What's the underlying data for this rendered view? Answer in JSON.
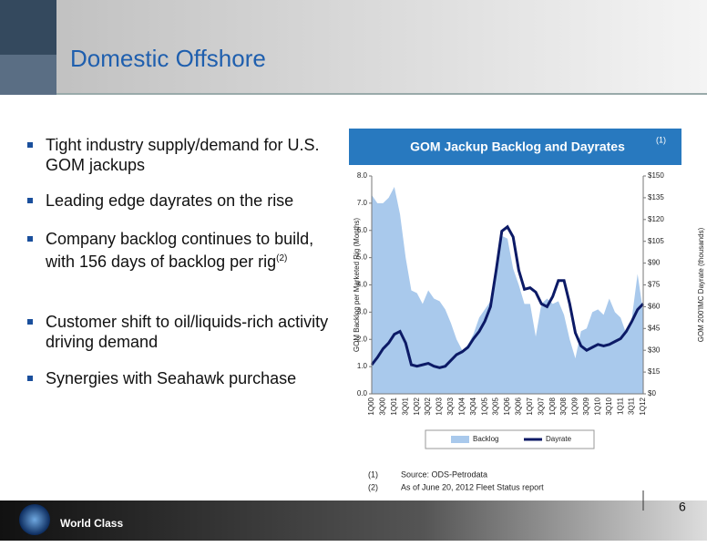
{
  "header": {
    "title": "Domestic Offshore"
  },
  "bullets": [
    {
      "text": "Tight industry supply/demand for U.S. GOM jackups"
    },
    {
      "text": "Leading edge dayrates on the rise"
    },
    {
      "text": "Company backlog continues to build, with 156 days of backlog per rig",
      "note": "(2)"
    },
    {
      "text": "Customer shift to oil/liquids-rich activity driving demand"
    },
    {
      "text": "Synergies with Seahawk purchase"
    }
  ],
  "chart_data": {
    "type": "area_line",
    "title": "GOM Jackup Backlog and Dayrates",
    "title_note": "(1)",
    "y_label": "GOM Backlog per Marketed Rig (Months)",
    "y2_label": "GOM 200'IMC Dayrate (thousands)",
    "categories": [
      "1Q00",
      null,
      "3Q00",
      null,
      "1Q01",
      null,
      "3Q01",
      null,
      "1Q02",
      null,
      "3Q02",
      null,
      "1Q03",
      null,
      "3Q03",
      null,
      "1Q04",
      null,
      "3Q04",
      null,
      "1Q05",
      null,
      "3Q05",
      null,
      "1Q06",
      null,
      "3Q06",
      null,
      "1Q07",
      null,
      "3Q07",
      null,
      "1Q08",
      null,
      "3Q08",
      null,
      "1Q09",
      null,
      "3Q09",
      null,
      "1Q10",
      null,
      "3Q10",
      null,
      "1Q11",
      null,
      "3Q11",
      null,
      "1Q12"
    ],
    "series": [
      {
        "name": "Backlog",
        "color": "#a9c9ec",
        "values": [
          7.3,
          7.0,
          7.0,
          7.2,
          7.6,
          6.6,
          5.0,
          3.8,
          3.7,
          3.3,
          3.8,
          3.5,
          3.4,
          3.1,
          2.6,
          2.0,
          1.6,
          1.8,
          2.2,
          2.8,
          3.1,
          3.4,
          4.5,
          5.8,
          5.7,
          4.6,
          4.0,
          3.3,
          3.3,
          2.1,
          3.3,
          3.5,
          3.3,
          3.4,
          2.9,
          2.0,
          1.3,
          2.3,
          2.4,
          3.0,
          3.1,
          2.9,
          3.5,
          3.0,
          2.8,
          2.2,
          2.8,
          4.4,
          3.0
        ]
      },
      {
        "name": "Dayrate",
        "color": "#0c1a66",
        "axis": "y2",
        "values": [
          20,
          25,
          31,
          35,
          41,
          43,
          35,
          20,
          19,
          20,
          21,
          19,
          18,
          19,
          23,
          27,
          29,
          32,
          38,
          43,
          50,
          60,
          85,
          112,
          115,
          108,
          85,
          72,
          73,
          70,
          62,
          60,
          67,
          78,
          78,
          62,
          42,
          33,
          30,
          32,
          34,
          33,
          34,
          36,
          38,
          43,
          50,
          58,
          62
        ]
      }
    ],
    "ylim": [
      0,
      8
    ],
    "yticks": [
      {
        "value": 0,
        "label": "0.0"
      },
      {
        "value": 1,
        "label": "1.0"
      },
      {
        "value": 2,
        "label": "2.0"
      },
      {
        "value": 3,
        "label": "3.0"
      },
      {
        "value": 4,
        "label": "4.0"
      },
      {
        "value": 5,
        "label": "5.0"
      },
      {
        "value": 6,
        "label": "6.0"
      },
      {
        "value": 7,
        "label": "7.0"
      },
      {
        "value": 8,
        "label": "8.0"
      }
    ],
    "y2lim": [
      0,
      150
    ],
    "y2ticks": [
      {
        "value": 0,
        "label": "$0"
      },
      {
        "value": 15,
        "label": "$15"
      },
      {
        "value": 30,
        "label": "$30"
      },
      {
        "value": 45,
        "label": "$45"
      },
      {
        "value": 60,
        "label": "$60"
      },
      {
        "value": 75,
        "label": "$75"
      },
      {
        "value": 90,
        "label": "$90"
      },
      {
        "value": 105,
        "label": "$105"
      },
      {
        "value": 120,
        "label": "$120"
      },
      {
        "value": 135,
        "label": "$135"
      },
      {
        "value": 150,
        "label": "$150"
      }
    ]
  },
  "footnotes": [
    {
      "num": "(1)",
      "text": "Source: ODS-Petrodata"
    },
    {
      "num": "(2)",
      "text": "As of June 20, 2012 Fleet Status report"
    }
  ],
  "footer": {
    "brand": "World Class",
    "page": "6"
  }
}
